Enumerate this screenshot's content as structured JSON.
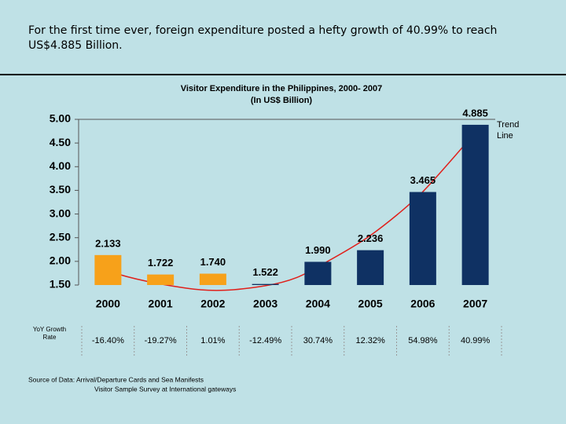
{
  "headline": "For the first time ever, foreign expenditure posted a hefty growth of 40.99% to reach US$4.885 Billion.",
  "chart_data": {
    "type": "bar",
    "title": "Visitor Expenditure in  the Philippines, 2000- 2007",
    "subtitle": "(In US$ Billion)",
    "categories": [
      "2000",
      "2001",
      "2002",
      "2003",
      "2004",
      "2005",
      "2006",
      "2007"
    ],
    "values": [
      2.133,
      1.722,
      1.74,
      1.522,
      1.99,
      2.236,
      3.465,
      4.885
    ],
    "value_labels": [
      "2.133",
      "1.722",
      "1.740",
      "1.522",
      "1.990",
      "2.236",
      "3.465",
      "4.885"
    ],
    "colors": [
      "#f7a11a",
      "#f7a11a",
      "#f7a11a",
      "#0f3163",
      "#0f3163",
      "#0f3163",
      "#0f3163",
      "#0f3163"
    ],
    "ylim": [
      1.5,
      5.0
    ],
    "yticks": [
      {
        "value": 1.5,
        "label": "1.50"
      },
      {
        "value": 2.0,
        "label": "2.00"
      },
      {
        "value": 2.5,
        "label": "2.50"
      },
      {
        "value": 3.0,
        "label": "3.00"
      },
      {
        "value": 3.5,
        "label": "3.50"
      },
      {
        "value": 4.0,
        "label": "4.00"
      },
      {
        "value": 4.5,
        "label": "4.50"
      },
      {
        "value": 5.0,
        "label": "5.00"
      }
    ],
    "annotation": "Trend Line"
  },
  "yoy_growth": {
    "label": "YoY Growth Rate",
    "labels": [
      "-16.40%",
      "-19.27%",
      "1.01%",
      "-12.49%",
      "30.74%",
      "12.32%",
      "54.98%",
      "40.99%"
    ]
  },
  "source": {
    "line1": "Source of Data: Arrival/Departure Cards and Sea Manifests",
    "line2": "Visitor Sample Survey at International gateways"
  }
}
